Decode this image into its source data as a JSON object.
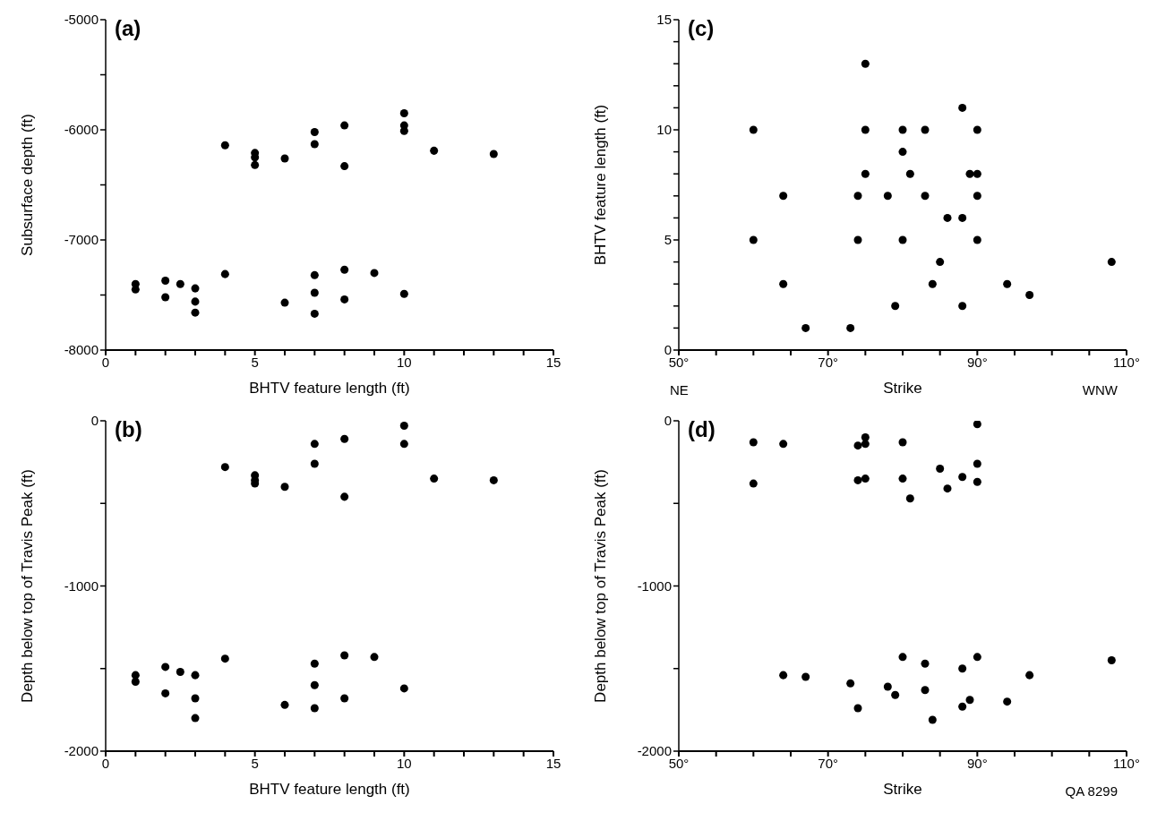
{
  "chart_data": [
    {
      "type": "scatter",
      "title": "(a)",
      "xlabel": "BHTV feature length (ft)",
      "ylabel": "Subsurface depth (ft)",
      "marker": "circle",
      "grid": false,
      "legend": false,
      "xlim": [
        0,
        15
      ],
      "xticks": [
        0,
        {
          "value": 1,
          "label": null
        },
        {
          "value": 2,
          "label": null
        },
        {
          "value": 3,
          "label": null
        },
        {
          "value": 4,
          "label": null
        },
        5,
        {
          "value": 6,
          "label": null
        },
        {
          "value": 7,
          "label": null
        },
        {
          "value": 8,
          "label": null
        },
        {
          "value": 9,
          "label": null
        },
        10,
        {
          "value": 11,
          "label": null
        },
        {
          "value": 12,
          "label": null
        },
        {
          "value": 13,
          "label": null
        },
        {
          "value": 14,
          "label": null
        },
        15
      ],
      "ylim": [
        -8000,
        -5000
      ],
      "yticks": [
        -8000,
        {
          "value": -7500,
          "label": null
        },
        -7000,
        {
          "value": -6500,
          "label": null
        },
        -6000,
        {
          "value": -5500,
          "label": null
        },
        -5000
      ],
      "x": [
        4,
        5,
        5,
        5,
        6,
        7,
        7,
        8,
        8,
        10,
        10,
        10,
        11,
        13,
        1,
        1,
        2,
        2,
        2.5,
        3,
        3,
        3,
        4,
        6,
        7,
        7,
        7,
        8,
        8,
        9,
        10
      ],
      "series": [
        {
          "color": "#000000",
          "values": [
            -6140,
            -6210,
            -6250,
            -6320,
            -6260,
            -6020,
            -6130,
            -5960,
            -6330,
            -5850,
            -5960,
            -6010,
            -6190,
            -6220,
            -7400,
            -7450,
            -7370,
            -7520,
            -7400,
            -7440,
            -7560,
            -7660,
            -7310,
            -7570,
            -7320,
            -7480,
            -7670,
            -7270,
            -7540,
            -7300,
            -7490
          ]
        }
      ]
    },
    {
      "type": "scatter",
      "title": "(c)",
      "xlabel": "Strike",
      "ylabel": "BHTV feature length (ft)",
      "marker": "circle",
      "grid": false,
      "legend": false,
      "annotations": [
        "NE",
        "WNW"
      ],
      "xlim": [
        50,
        110
      ],
      "xticks": [
        {
          "value": 50,
          "label": "50°"
        },
        {
          "value": 55,
          "label": null
        },
        {
          "value": 60,
          "label": null
        },
        {
          "value": 65,
          "label": null
        },
        {
          "value": 70,
          "label": "70°"
        },
        {
          "value": 75,
          "label": null
        },
        {
          "value": 80,
          "label": null
        },
        {
          "value": 85,
          "label": null
        },
        {
          "value": 90,
          "label": "90°"
        },
        {
          "value": 95,
          "label": null
        },
        {
          "value": 100,
          "label": null
        },
        {
          "value": 105,
          "label": null
        },
        {
          "value": 110,
          "label": "110°"
        }
      ],
      "ylim": [
        0,
        15
      ],
      "yticks": [
        0,
        {
          "value": 1,
          "label": null
        },
        {
          "value": 2,
          "label": null
        },
        {
          "value": 3,
          "label": null
        },
        {
          "value": 4,
          "label": null
        },
        5,
        {
          "value": 6,
          "label": null
        },
        {
          "value": 7,
          "label": null
        },
        {
          "value": 8,
          "label": null
        },
        {
          "value": 9,
          "label": null
        },
        10,
        {
          "value": 11,
          "label": null
        },
        {
          "value": 12,
          "label": null
        },
        {
          "value": 13,
          "label": null
        },
        {
          "value": 14,
          "label": null
        },
        15
      ],
      "x": [
        60,
        60,
        64,
        64,
        67,
        73,
        74,
        74,
        75,
        75,
        75,
        78,
        79,
        80,
        80,
        80,
        81,
        83,
        83,
        84,
        85,
        86,
        88,
        88,
        88,
        89,
        90,
        90,
        90,
        90,
        94,
        97,
        108
      ],
      "series": [
        {
          "color": "#000000",
          "values": [
            10,
            5,
            7,
            3,
            1,
            1,
            7,
            5,
            13,
            10,
            8,
            7,
            2,
            10,
            9,
            5,
            8,
            10,
            7,
            3,
            4,
            6,
            11,
            6,
            2,
            8,
            10,
            8,
            7,
            5,
            3,
            2.5,
            4
          ]
        }
      ]
    },
    {
      "type": "scatter",
      "title": "(b)",
      "xlabel": "BHTV feature length (ft)",
      "ylabel": "Depth below top of Travis Peak (ft)",
      "marker": "circle",
      "grid": false,
      "legend": false,
      "xlim": [
        0,
        15
      ],
      "xticks": [
        0,
        {
          "value": 1,
          "label": null
        },
        {
          "value": 2,
          "label": null
        },
        {
          "value": 3,
          "label": null
        },
        {
          "value": 4,
          "label": null
        },
        5,
        {
          "value": 6,
          "label": null
        },
        {
          "value": 7,
          "label": null
        },
        {
          "value": 8,
          "label": null
        },
        {
          "value": 9,
          "label": null
        },
        10,
        {
          "value": 11,
          "label": null
        },
        {
          "value": 12,
          "label": null
        },
        {
          "value": 13,
          "label": null
        },
        {
          "value": 14,
          "label": null
        },
        15
      ],
      "ylim": [
        -2000,
        0
      ],
      "yticks": [
        -2000,
        {
          "value": -1500,
          "label": null
        },
        -1000,
        {
          "value": -500,
          "label": null
        },
        0
      ],
      "x": [
        4,
        5,
        5,
        5,
        6,
        7,
        7,
        8,
        8,
        10,
        10,
        11,
        13,
        1,
        1,
        2,
        2,
        2.5,
        3,
        3,
        3,
        4,
        6,
        7,
        7,
        7,
        8,
        8,
        9,
        10
      ],
      "series": [
        {
          "color": "#000000",
          "values": [
            -280,
            -330,
            -360,
            -380,
            -400,
            -140,
            -260,
            -110,
            -460,
            -30,
            -140,
            -350,
            -360,
            -1540,
            -1580,
            -1490,
            -1650,
            -1520,
            -1540,
            -1680,
            -1800,
            -1440,
            -1720,
            -1470,
            -1600,
            -1740,
            -1420,
            -1680,
            -1430,
            -1620
          ]
        }
      ]
    },
    {
      "type": "scatter",
      "title": "(d)",
      "xlabel": "Strike",
      "ylabel": "Depth below top of Travis Peak (ft)",
      "marker": "circle",
      "grid": false,
      "legend": false,
      "annotations": [
        "QA 8299"
      ],
      "xlim": [
        50,
        110
      ],
      "xticks": [
        {
          "value": 50,
          "label": "50°"
        },
        {
          "value": 55,
          "label": null
        },
        {
          "value": 60,
          "label": null
        },
        {
          "value": 65,
          "label": null
        },
        {
          "value": 70,
          "label": "70°"
        },
        {
          "value": 75,
          "label": null
        },
        {
          "value": 80,
          "label": null
        },
        {
          "value": 85,
          "label": null
        },
        {
          "value": 90,
          "label": "90°"
        },
        {
          "value": 95,
          "label": null
        },
        {
          "value": 100,
          "label": null
        },
        {
          "value": 105,
          "label": null
        },
        {
          "value": 110,
          "label": "110°"
        }
      ],
      "ylim": [
        -2000,
        0
      ],
      "yticks": [
        -2000,
        {
          "value": -1500,
          "label": null
        },
        -1000,
        {
          "value": -500,
          "label": null
        },
        0
      ],
      "x": [
        60,
        60,
        64,
        74,
        75,
        75,
        74,
        75,
        80,
        80,
        81,
        85,
        86,
        88,
        90,
        90,
        90,
        64,
        67,
        73,
        74,
        78,
        79,
        80,
        83,
        83,
        84,
        88,
        88,
        89,
        90,
        94,
        97,
        108
      ],
      "series": [
        {
          "color": "#000000",
          "values": [
            -130,
            -380,
            -140,
            -150,
            -100,
            -140,
            -360,
            -350,
            -130,
            -350,
            -470,
            -290,
            -410,
            -340,
            -20,
            -260,
            -370,
            -1540,
            -1550,
            -1590,
            -1740,
            -1610,
            -1660,
            -1430,
            -1470,
            -1630,
            -1810,
            -1500,
            -1730,
            -1690,
            -1430,
            -1700,
            -1540,
            -1450
          ]
        }
      ]
    }
  ]
}
